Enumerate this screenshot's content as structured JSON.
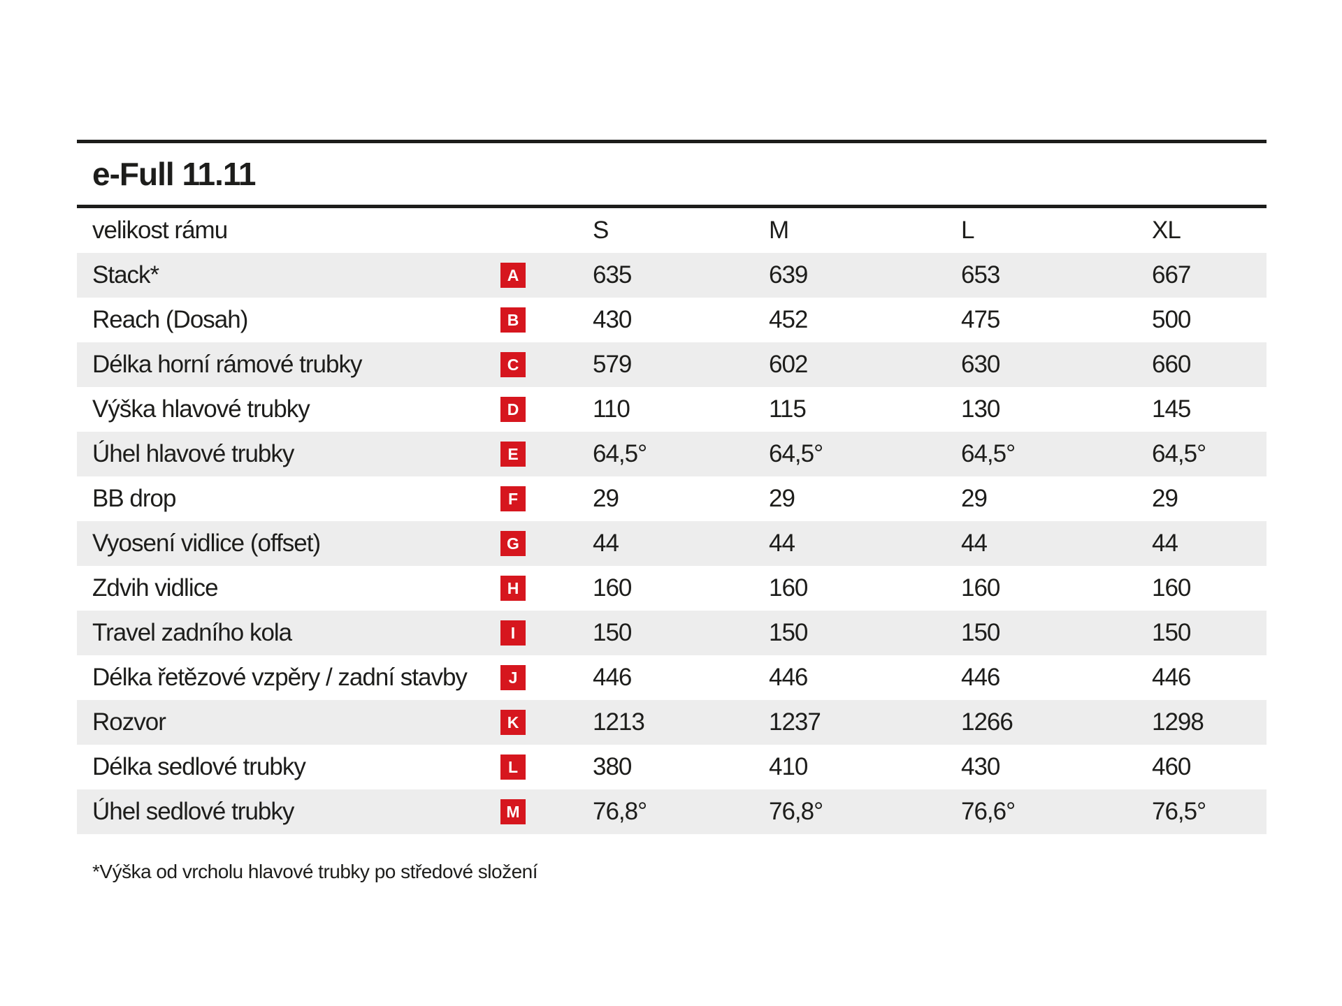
{
  "title": "e-Full 11.11",
  "table": {
    "size_header_label": "velikost rámu",
    "sizes": [
      "S",
      "M",
      "L",
      "XL"
    ],
    "rows": [
      {
        "label": "Stack*",
        "badge": "A",
        "values": [
          "635",
          "639",
          "653",
          "667"
        ]
      },
      {
        "label": "Reach (Dosah)",
        "badge": "B",
        "values": [
          "430",
          "452",
          "475",
          "500"
        ]
      },
      {
        "label": "Délka horní rámové trubky",
        "badge": "C",
        "values": [
          "579",
          "602",
          "630",
          "660"
        ]
      },
      {
        "label": "Výška hlavové trubky",
        "badge": "D",
        "values": [
          "110",
          "115",
          "130",
          "145"
        ]
      },
      {
        "label": "Úhel hlavové trubky",
        "badge": "E",
        "values": [
          "64,5°",
          "64,5°",
          "64,5°",
          "64,5°"
        ]
      },
      {
        "label": "BB drop",
        "badge": "F",
        "values": [
          "29",
          "29",
          "29",
          "29"
        ]
      },
      {
        "label": "Vyosení vidlice (offset)",
        "badge": "G",
        "values": [
          "44",
          "44",
          "44",
          "44"
        ]
      },
      {
        "label": "Zdvih vidlice",
        "badge": "H",
        "values": [
          "160",
          "160",
          "160",
          "160"
        ]
      },
      {
        "label": "Travel zadního kola",
        "badge": "I",
        "values": [
          "150",
          "150",
          "150",
          "150"
        ]
      },
      {
        "label": "Délka řetězové vzpěry / zadní stavby",
        "badge": "J",
        "values": [
          "446",
          "446",
          "446",
          "446"
        ]
      },
      {
        "label": "Rozvor",
        "badge": "K",
        "values": [
          "1213",
          "1237",
          "1266",
          "1298"
        ]
      },
      {
        "label": "Délka sedlové trubky",
        "badge": "L",
        "values": [
          "380",
          "410",
          "430",
          "460"
        ]
      },
      {
        "label": "Úhel sedlové trubky",
        "badge": "M",
        "values": [
          "76,8°",
          "76,8°",
          "76,6°",
          "76,5°"
        ]
      }
    ]
  },
  "footnote": "*Výška od vrcholu hlavové trubky po středové složení",
  "colors": {
    "ink": "#1d1d1b",
    "row_gray": "#ededed",
    "badge_red": "#d6161e"
  }
}
